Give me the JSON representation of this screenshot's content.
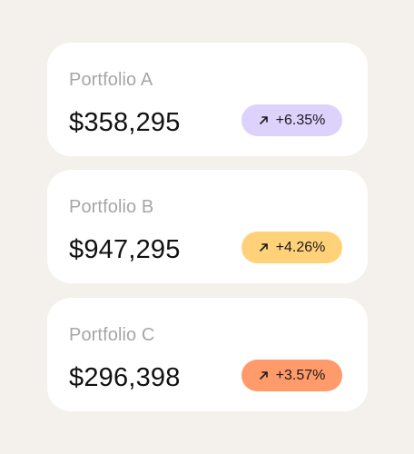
{
  "portfolios": [
    {
      "name": "Portfolio A",
      "value": "$358,295",
      "change": "+6.35%",
      "badge_color": "#ddd2fb"
    },
    {
      "name": "Portfolio B",
      "value": "$947,295",
      "change": "+4.26%",
      "badge_color": "#ffd27a"
    },
    {
      "name": "Portfolio C",
      "value": "$296,398",
      "change": "+3.57%",
      "badge_color": "#ff9a6a"
    }
  ],
  "icons": {
    "trend": "arrow-up-right-icon"
  }
}
